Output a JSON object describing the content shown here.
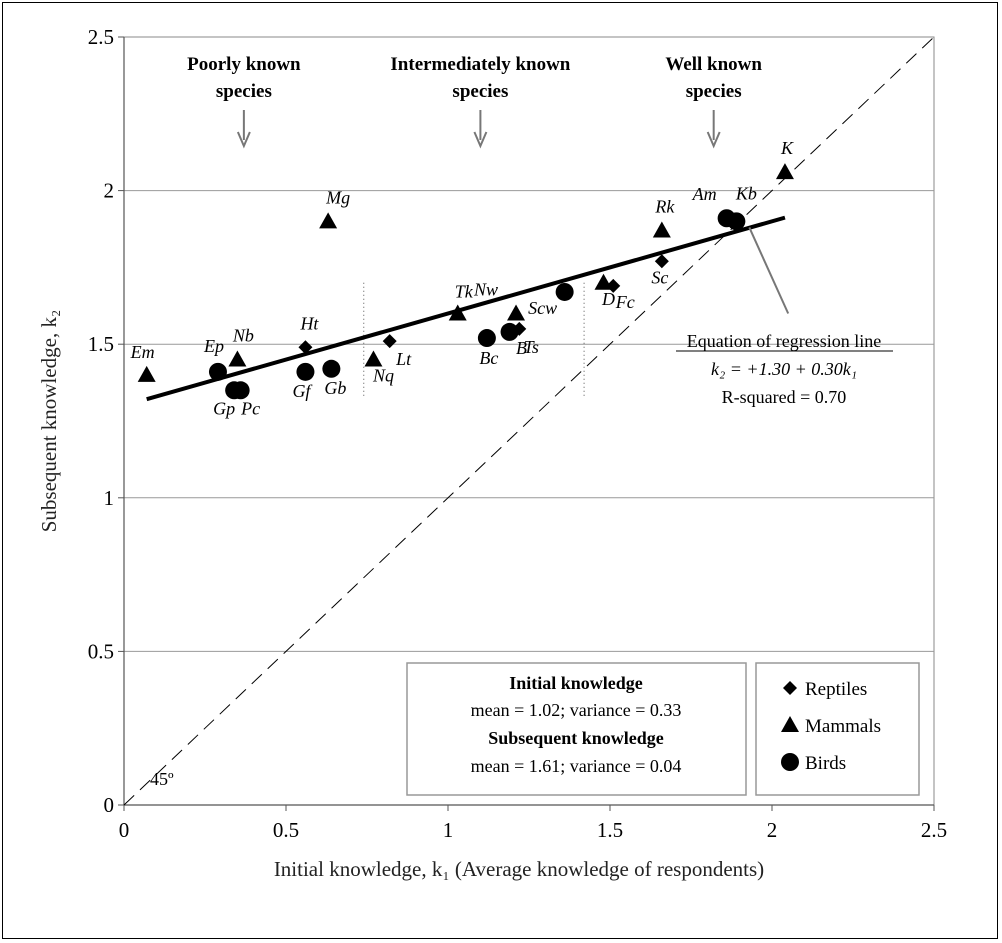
{
  "chart_data": {
    "type": "scatter",
    "xlabel": "Initial knowledge, k₁ (Average knowledge of respondents)",
    "ylabel": "Subsequent knowledge, k₂",
    "xlim": [
      0,
      2.5
    ],
    "ylim": [
      0,
      2.5
    ],
    "x_ticks": [
      "0",
      "0.5",
      "1",
      "1.5",
      "2",
      "2.5"
    ],
    "y_ticks": [
      "0",
      "0.5",
      "1",
      "1.5",
      "2",
      "2.5"
    ],
    "grid": "horizontal",
    "legend_position": "bottom-right",
    "series": [
      {
        "name": "Reptiles",
        "marker": "diamond",
        "points": [
          {
            "label": "Ht",
            "x": 0.56,
            "y": 1.49
          },
          {
            "label": "Lt",
            "x": 0.82,
            "y": 1.51
          },
          {
            "label": "Ts",
            "x": 1.22,
            "y": 1.55
          },
          {
            "label": "Fc",
            "x": 1.51,
            "y": 1.69
          },
          {
            "label": "Sc",
            "x": 1.66,
            "y": 1.77
          }
        ]
      },
      {
        "name": "Mammals",
        "marker": "triangle",
        "points": [
          {
            "label": "Em",
            "x": 0.07,
            "y": 1.4
          },
          {
            "label": "Nb",
            "x": 0.35,
            "y": 1.45
          },
          {
            "label": "Mg",
            "x": 0.63,
            "y": 1.9
          },
          {
            "label": "Nq",
            "x": 0.77,
            "y": 1.45
          },
          {
            "label": "Tk",
            "x": 1.03,
            "y": 1.6
          },
          {
            "label": "Nw",
            "x": 1.21,
            "y": 1.6
          },
          {
            "label": "D",
            "x": 1.48,
            "y": 1.7
          },
          {
            "label": "Rk",
            "x": 1.66,
            "y": 1.87
          },
          {
            "label": "K",
            "x": 2.04,
            "y": 2.06
          }
        ]
      },
      {
        "name": "Birds",
        "marker": "circle",
        "points": [
          {
            "label": "Ep",
            "x": 0.29,
            "y": 1.41
          },
          {
            "label": "Gp",
            "x": 0.34,
            "y": 1.35
          },
          {
            "label": "Pc",
            "x": 0.36,
            "y": 1.35
          },
          {
            "label": "Gf",
            "x": 0.56,
            "y": 1.41
          },
          {
            "label": "Gb",
            "x": 0.64,
            "y": 1.42
          },
          {
            "label": "Bc",
            "x": 1.12,
            "y": 1.52
          },
          {
            "label": "B",
            "x": 1.19,
            "y": 1.54
          },
          {
            "label": "Scw",
            "x": 1.36,
            "y": 1.67
          },
          {
            "label": "Am",
            "x": 1.86,
            "y": 1.91
          },
          {
            "label": "Kb",
            "x": 1.89,
            "y": 1.9
          }
        ]
      }
    ],
    "regression_line": {
      "intercept": 1.3,
      "slope": 0.3,
      "x_start": 0.07,
      "x_end": 2.04
    },
    "reference_line": {
      "label": "45º",
      "slope": 1
    },
    "dotted_dividers_x": [
      0.74,
      1.42
    ],
    "annotations": [
      {
        "text_lines": [
          "Poorly known",
          "species"
        ],
        "arrow_x": 0.37
      },
      {
        "text_lines": [
          "Intermediately known",
          "species"
        ],
        "arrow_x": 1.1
      },
      {
        "text_lines": [
          "Well known",
          "species"
        ],
        "arrow_x": 1.82
      }
    ],
    "equation_box": {
      "title": "Equation of regression line",
      "equation": "k₂ = +1.30 + 0.30k₁",
      "r_squared": "R-squared = 0.70"
    },
    "stats_box": {
      "initial_title": "Initial knowledge",
      "initial_stats": "mean = 1.02; variance = 0.33",
      "subsequent_title": "Subsequent knowledge",
      "subsequent_stats": "mean = 1.61; variance = 0.04"
    }
  }
}
